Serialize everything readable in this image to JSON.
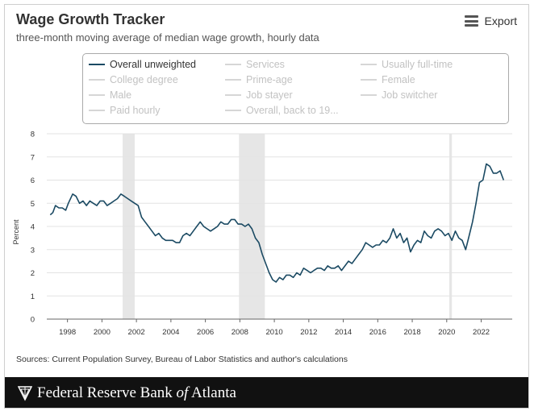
{
  "header": {
    "title": "Wage Growth Tracker",
    "subtitle": "three-month moving average of median wage growth, hourly data",
    "export_label": "Export",
    "export_icon": "menu-icon"
  },
  "legend": {
    "items": [
      {
        "label": "Overall unweighted",
        "active": true
      },
      {
        "label": "Services",
        "active": false
      },
      {
        "label": "Usually full-time",
        "active": false
      },
      {
        "label": "College degree",
        "active": false
      },
      {
        "label": "Prime-age",
        "active": false
      },
      {
        "label": "Female",
        "active": false
      },
      {
        "label": "Male",
        "active": false
      },
      {
        "label": "Job stayer",
        "active": false
      },
      {
        "label": "Job switcher",
        "active": false
      },
      {
        "label": "Paid hourly",
        "active": false
      },
      {
        "label": "Overall, back to 19...",
        "active": false
      }
    ]
  },
  "chart_data": {
    "type": "line",
    "ylabel": "Percent",
    "xlabel": "",
    "ylim": [
      0,
      8
    ],
    "xlim": [
      1996.8,
      2023.8
    ],
    "yticks": [
      0,
      1,
      2,
      3,
      4,
      5,
      6,
      7,
      8
    ],
    "xticks": [
      1998,
      2000,
      2002,
      2004,
      2006,
      2008,
      2010,
      2012,
      2014,
      2016,
      2018,
      2020,
      2022
    ],
    "grid": true,
    "line_color": "#1b4a63",
    "recession_color": "#e6e6e6",
    "recessions": [
      [
        2001.2,
        2001.9
      ],
      [
        2007.95,
        2009.45
      ],
      [
        2020.15,
        2020.3
      ]
    ],
    "series": [
      {
        "name": "Overall unweighted",
        "points": [
          [
            1997.0,
            4.5
          ],
          [
            1997.15,
            4.6
          ],
          [
            1997.3,
            4.9
          ],
          [
            1997.5,
            4.8
          ],
          [
            1997.7,
            4.8
          ],
          [
            1997.9,
            4.7
          ],
          [
            1998.05,
            5.0
          ],
          [
            1998.3,
            5.4
          ],
          [
            1998.5,
            5.3
          ],
          [
            1998.7,
            5.0
          ],
          [
            1998.9,
            5.1
          ],
          [
            1999.1,
            4.9
          ],
          [
            1999.3,
            5.1
          ],
          [
            1999.5,
            5.0
          ],
          [
            1999.7,
            4.9
          ],
          [
            1999.9,
            5.1
          ],
          [
            2000.1,
            5.1
          ],
          [
            2000.3,
            4.9
          ],
          [
            2000.5,
            5.0
          ],
          [
            2000.7,
            5.1
          ],
          [
            2000.9,
            5.2
          ],
          [
            2001.1,
            5.4
          ],
          [
            2001.3,
            5.3
          ],
          [
            2001.5,
            5.2
          ],
          [
            2001.7,
            5.1
          ],
          [
            2001.9,
            5.0
          ],
          [
            2002.1,
            4.9
          ],
          [
            2002.3,
            4.4
          ],
          [
            2002.5,
            4.2
          ],
          [
            2002.7,
            4.0
          ],
          [
            2002.9,
            3.8
          ],
          [
            2003.1,
            3.6
          ],
          [
            2003.3,
            3.7
          ],
          [
            2003.5,
            3.5
          ],
          [
            2003.7,
            3.4
          ],
          [
            2003.9,
            3.4
          ],
          [
            2004.1,
            3.4
          ],
          [
            2004.3,
            3.3
          ],
          [
            2004.5,
            3.3
          ],
          [
            2004.7,
            3.6
          ],
          [
            2004.9,
            3.7
          ],
          [
            2005.1,
            3.6
          ],
          [
            2005.3,
            3.8
          ],
          [
            2005.5,
            4.0
          ],
          [
            2005.7,
            4.2
          ],
          [
            2005.9,
            4.0
          ],
          [
            2006.1,
            3.9
          ],
          [
            2006.3,
            3.8
          ],
          [
            2006.5,
            3.9
          ],
          [
            2006.7,
            4.0
          ],
          [
            2006.9,
            4.2
          ],
          [
            2007.1,
            4.1
          ],
          [
            2007.3,
            4.1
          ],
          [
            2007.5,
            4.3
          ],
          [
            2007.7,
            4.3
          ],
          [
            2007.9,
            4.1
          ],
          [
            2008.1,
            4.1
          ],
          [
            2008.3,
            4.0
          ],
          [
            2008.5,
            4.1
          ],
          [
            2008.7,
            3.9
          ],
          [
            2008.9,
            3.5
          ],
          [
            2009.1,
            3.3
          ],
          [
            2009.3,
            2.8
          ],
          [
            2009.5,
            2.4
          ],
          [
            2009.7,
            2.0
          ],
          [
            2009.9,
            1.7
          ],
          [
            2010.1,
            1.6
          ],
          [
            2010.3,
            1.8
          ],
          [
            2010.5,
            1.7
          ],
          [
            2010.7,
            1.9
          ],
          [
            2010.9,
            1.9
          ],
          [
            2011.1,
            1.8
          ],
          [
            2011.3,
            2.0
          ],
          [
            2011.5,
            1.9
          ],
          [
            2011.7,
            2.2
          ],
          [
            2011.9,
            2.1
          ],
          [
            2012.1,
            2.0
          ],
          [
            2012.3,
            2.1
          ],
          [
            2012.5,
            2.2
          ],
          [
            2012.7,
            2.2
          ],
          [
            2012.9,
            2.1
          ],
          [
            2013.1,
            2.3
          ],
          [
            2013.3,
            2.2
          ],
          [
            2013.5,
            2.2
          ],
          [
            2013.7,
            2.3
          ],
          [
            2013.9,
            2.1
          ],
          [
            2014.1,
            2.3
          ],
          [
            2014.3,
            2.5
          ],
          [
            2014.5,
            2.4
          ],
          [
            2014.7,
            2.6
          ],
          [
            2014.9,
            2.8
          ],
          [
            2015.1,
            3.0
          ],
          [
            2015.3,
            3.3
          ],
          [
            2015.5,
            3.2
          ],
          [
            2015.7,
            3.1
          ],
          [
            2015.9,
            3.2
          ],
          [
            2016.1,
            3.2
          ],
          [
            2016.3,
            3.4
          ],
          [
            2016.5,
            3.3
          ],
          [
            2016.7,
            3.5
          ],
          [
            2016.9,
            3.9
          ],
          [
            2017.1,
            3.5
          ],
          [
            2017.3,
            3.7
          ],
          [
            2017.5,
            3.3
          ],
          [
            2017.7,
            3.5
          ],
          [
            2017.9,
            2.9
          ],
          [
            2018.1,
            3.2
          ],
          [
            2018.3,
            3.4
          ],
          [
            2018.5,
            3.3
          ],
          [
            2018.7,
            3.8
          ],
          [
            2018.9,
            3.6
          ],
          [
            2019.1,
            3.5
          ],
          [
            2019.3,
            3.8
          ],
          [
            2019.5,
            3.9
          ],
          [
            2019.7,
            3.8
          ],
          [
            2019.9,
            3.6
          ],
          [
            2020.1,
            3.7
          ],
          [
            2020.3,
            3.4
          ],
          [
            2020.5,
            3.8
          ],
          [
            2020.7,
            3.5
          ],
          [
            2020.9,
            3.4
          ],
          [
            2021.1,
            3.0
          ],
          [
            2021.3,
            3.6
          ],
          [
            2021.5,
            4.2
          ],
          [
            2021.7,
            5.0
          ],
          [
            2021.9,
            5.9
          ],
          [
            2022.1,
            6.0
          ],
          [
            2022.3,
            6.7
          ],
          [
            2022.5,
            6.6
          ],
          [
            2022.7,
            6.3
          ],
          [
            2022.9,
            6.3
          ],
          [
            2023.1,
            6.4
          ],
          [
            2023.3,
            6.0
          ]
        ]
      }
    ]
  },
  "footer": {
    "sources": "Sources: Current Population Survey, Bureau of Labor Statistics and author's calculations",
    "bank_pre": "Federal Reserve Bank ",
    "bank_of": "of",
    "bank_post": " Atlanta",
    "logo_icon": "eagle-emblem-icon"
  }
}
